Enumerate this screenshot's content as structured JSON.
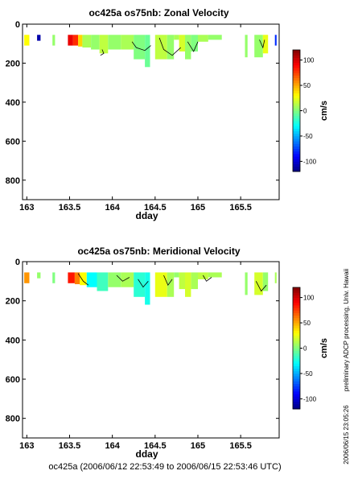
{
  "chart_data": [
    {
      "type": "heatmap",
      "title": "oc425a os75nb: Zonal Velocity",
      "xlabel": "dday",
      "ylabel": "",
      "xlim": [
        162.95,
        165.95
      ],
      "ylim": [
        900,
        0
      ],
      "xticks": [
        "163",
        "163.5",
        "164",
        "164.5",
        "165",
        "165.5"
      ],
      "yticks": [
        "0",
        "200",
        "400",
        "600",
        "800"
      ],
      "colorbar": {
        "label": "cm/s",
        "range": [
          -120,
          120
        ],
        "ticks": [
          "100",
          "50",
          "0",
          "-50",
          "-100"
        ]
      },
      "cells": [
        {
          "x0": 162.97,
          "x1": 163.03,
          "y0": 55,
          "y1": 110,
          "v": 30
        },
        {
          "x0": 163.12,
          "x1": 163.16,
          "y0": 55,
          "y1": 85,
          "v": -110
        },
        {
          "x0": 163.3,
          "x1": 163.33,
          "y0": 55,
          "y1": 110,
          "v": 5
        },
        {
          "x0": 163.48,
          "x1": 163.54,
          "y0": 55,
          "y1": 110,
          "v": 95
        },
        {
          "x0": 163.54,
          "x1": 163.6,
          "y0": 55,
          "y1": 110,
          "v": 80
        },
        {
          "x0": 163.6,
          "x1": 163.65,
          "y0": 55,
          "y1": 115,
          "v": 40
        },
        {
          "x0": 163.65,
          "x1": 163.75,
          "y0": 55,
          "y1": 120,
          "v": 10
        },
        {
          "x0": 163.75,
          "x1": 163.85,
          "y0": 55,
          "y1": 130,
          "v": 5
        },
        {
          "x0": 163.85,
          "x1": 163.95,
          "y0": 55,
          "y1": 150,
          "v": 15
        },
        {
          "x0": 163.95,
          "x1": 164.1,
          "y0": 55,
          "y1": 130,
          "v": 5
        },
        {
          "x0": 164.1,
          "x1": 164.25,
          "y0": 55,
          "y1": 130,
          "v": 10
        },
        {
          "x0": 164.25,
          "x1": 164.38,
          "y0": 55,
          "y1": 180,
          "v": 0
        },
        {
          "x0": 164.38,
          "x1": 164.44,
          "y0": 55,
          "y1": 220,
          "v": -5
        },
        {
          "x0": 164.5,
          "x1": 164.64,
          "y0": 55,
          "y1": 180,
          "v": 15
        },
        {
          "x0": 164.64,
          "x1": 164.72,
          "y0": 55,
          "y1": 180,
          "v": 5
        },
        {
          "x0": 164.72,
          "x1": 164.78,
          "y0": 55,
          "y1": 80,
          "v": 10
        },
        {
          "x0": 164.78,
          "x1": 164.85,
          "y0": 55,
          "y1": 140,
          "v": 20
        },
        {
          "x0": 164.85,
          "x1": 164.92,
          "y0": 55,
          "y1": 180,
          "v": 5
        },
        {
          "x0": 164.92,
          "x1": 165.0,
          "y0": 55,
          "y1": 140,
          "v": 0
        },
        {
          "x0": 165.0,
          "x1": 165.12,
          "y0": 55,
          "y1": 90,
          "v": 10
        },
        {
          "x0": 165.12,
          "x1": 165.28,
          "y0": 55,
          "y1": 80,
          "v": 5
        },
        {
          "x0": 165.55,
          "x1": 165.58,
          "y0": 55,
          "y1": 170,
          "v": 5
        },
        {
          "x0": 165.66,
          "x1": 165.76,
          "y0": 55,
          "y1": 170,
          "v": 5
        },
        {
          "x0": 165.76,
          "x1": 165.82,
          "y0": 55,
          "y1": 150,
          "v": 25
        },
        {
          "x0": 165.9,
          "x1": 165.92,
          "y0": 55,
          "y1": 110,
          "v": -80
        }
      ],
      "contours": [
        [
          [
            164.23,
            90
          ],
          [
            164.28,
            120
          ],
          [
            164.38,
            135
          ],
          [
            164.45,
            110
          ]
        ],
        [
          [
            164.55,
            70
          ],
          [
            164.6,
            130
          ],
          [
            164.7,
            160
          ],
          [
            164.8,
            120
          ]
        ],
        [
          [
            164.88,
            90
          ],
          [
            164.95,
            140
          ],
          [
            165.0,
            90
          ]
        ],
        [
          [
            165.72,
            80
          ],
          [
            165.76,
            120
          ],
          [
            165.78,
            80
          ]
        ],
        [
          [
            163.88,
            130
          ],
          [
            163.9,
            150
          ],
          [
            163.86,
            160
          ]
        ]
      ]
    },
    {
      "type": "heatmap",
      "title": "oc425a os75nb: Meridional Velocity",
      "xlabel": "dday",
      "ylabel": "",
      "xlim": [
        162.95,
        165.95
      ],
      "ylim": [
        900,
        0
      ],
      "xticks": [
        "163",
        "163.5",
        "164",
        "164.5",
        "165",
        "165.5"
      ],
      "yticks": [
        "0",
        "200",
        "400",
        "600",
        "800"
      ],
      "colorbar": {
        "label": "cm/s",
        "range": [
          -120,
          120
        ],
        "ticks": [
          "100",
          "50",
          "0",
          "-50",
          "-100"
        ]
      },
      "cells": [
        {
          "x0": 162.97,
          "x1": 163.03,
          "y0": 55,
          "y1": 110,
          "v": 55
        },
        {
          "x0": 163.12,
          "x1": 163.16,
          "y0": 55,
          "y1": 85,
          "v": 5
        },
        {
          "x0": 163.3,
          "x1": 163.33,
          "y0": 55,
          "y1": 110,
          "v": 0
        },
        {
          "x0": 163.48,
          "x1": 163.56,
          "y0": 55,
          "y1": 110,
          "v": 85
        },
        {
          "x0": 163.56,
          "x1": 163.62,
          "y0": 55,
          "y1": 115,
          "v": 60
        },
        {
          "x0": 163.62,
          "x1": 163.7,
          "y0": 55,
          "y1": 120,
          "v": 30
        },
        {
          "x0": 163.7,
          "x1": 163.82,
          "y0": 55,
          "y1": 130,
          "v": -30
        },
        {
          "x0": 163.82,
          "x1": 163.95,
          "y0": 55,
          "y1": 150,
          "v": -15
        },
        {
          "x0": 163.95,
          "x1": 164.1,
          "y0": 55,
          "y1": 130,
          "v": 5
        },
        {
          "x0": 164.1,
          "x1": 164.25,
          "y0": 55,
          "y1": 130,
          "v": 10
        },
        {
          "x0": 164.25,
          "x1": 164.38,
          "y0": 55,
          "y1": 180,
          "v": -20
        },
        {
          "x0": 164.38,
          "x1": 164.44,
          "y0": 55,
          "y1": 220,
          "v": -25
        },
        {
          "x0": 164.5,
          "x1": 164.64,
          "y0": 55,
          "y1": 180,
          "v": 25
        },
        {
          "x0": 164.64,
          "x1": 164.72,
          "y0": 55,
          "y1": 180,
          "v": 10
        },
        {
          "x0": 164.72,
          "x1": 164.78,
          "y0": 55,
          "y1": 80,
          "v": 5
        },
        {
          "x0": 164.78,
          "x1": 164.85,
          "y0": 55,
          "y1": 140,
          "v": 15
        },
        {
          "x0": 164.85,
          "x1": 164.92,
          "y0": 55,
          "y1": 180,
          "v": 20
        },
        {
          "x0": 164.92,
          "x1": 165.0,
          "y0": 55,
          "y1": 140,
          "v": 10
        },
        {
          "x0": 165.0,
          "x1": 165.12,
          "y0": 55,
          "y1": 90,
          "v": 15
        },
        {
          "x0": 165.12,
          "x1": 165.28,
          "y0": 55,
          "y1": 80,
          "v": 10
        },
        {
          "x0": 165.55,
          "x1": 165.58,
          "y0": 55,
          "y1": 170,
          "v": 5
        },
        {
          "x0": 165.66,
          "x1": 165.76,
          "y0": 55,
          "y1": 170,
          "v": 20
        },
        {
          "x0": 165.76,
          "x1": 165.82,
          "y0": 55,
          "y1": 150,
          "v": 5
        },
        {
          "x0": 165.9,
          "x1": 165.92,
          "y0": 55,
          "y1": 110,
          "v": 10
        }
      ],
      "contours": [
        [
          [
            163.6,
            60
          ],
          [
            163.66,
            100
          ],
          [
            163.72,
            120
          ]
        ],
        [
          [
            164.05,
            70
          ],
          [
            164.12,
            100
          ],
          [
            164.2,
            80
          ]
        ],
        [
          [
            164.3,
            90
          ],
          [
            164.36,
            130
          ],
          [
            164.42,
            100
          ]
        ],
        [
          [
            164.6,
            70
          ],
          [
            164.65,
            120
          ],
          [
            164.7,
            90
          ]
        ],
        [
          [
            165.06,
            70
          ],
          [
            165.1,
            100
          ],
          [
            165.16,
            80
          ]
        ],
        [
          [
            165.68,
            100
          ],
          [
            165.74,
            150
          ],
          [
            165.8,
            120
          ]
        ]
      ]
    }
  ],
  "side_text": "preliminary ADCP processing,  Univ. Hawaii",
  "timestamp": "2006/06/15 23:05:26",
  "footer": "oc425a (2006/06/12 22:53:49 to 2006/06/15 22:53:46 UTC)"
}
